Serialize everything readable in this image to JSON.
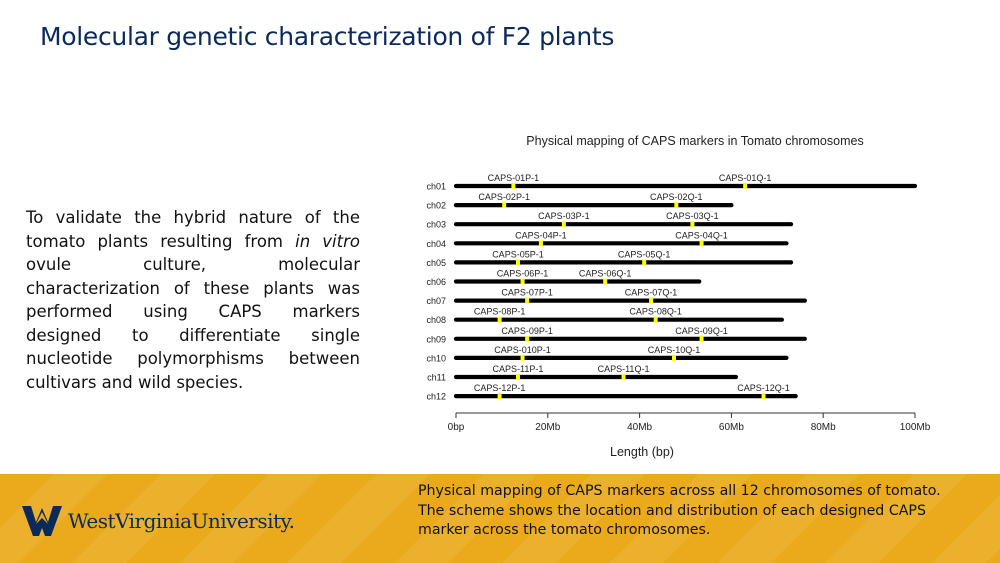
{
  "slide": {
    "title": "Molecular genetic characterization of F2 plants",
    "body_before": "To validate the hybrid nature of the tomato plants resulting from ",
    "body_italic": "in vitro",
    "body_after": " ovule culture, molecular characterization of these plants was performed using CAPS markers designed to differentiate single nucleotide polymorphisms between cultivars and wild species.",
    "caption": "Physical mapping of CAPS markers across all 12 chromosomes of tomato. The scheme shows the location and distribution of each designed CAPS marker across the tomato chromosomes.",
    "logo_text": "WestVirginiaUniversity."
  },
  "colors": {
    "title": "#0b2a5c",
    "footer": "#eaaa1c",
    "marker": "#ffff00",
    "chromosome": "#000000"
  },
  "chart_data": {
    "type": "scatter",
    "title": "Physical mapping of CAPS markers in Tomato chromosomes",
    "xlabel": "Length (bp)",
    "ylabel": "",
    "xlim": [
      0,
      100
    ],
    "x_unit": "Mb",
    "xticks": [
      0,
      20,
      40,
      60,
      80,
      100
    ],
    "xtick_labels": [
      "0bp",
      "20Mb",
      "40Mb",
      "60Mb",
      "80Mb",
      "100Mb"
    ],
    "chromosomes": [
      {
        "name": "ch01",
        "length": 100.0,
        "p_marker": {
          "label": "CAPS-01P-1",
          "pos": 12.5
        },
        "q_marker": {
          "label": "CAPS-01Q-1",
          "pos": 63.0
        }
      },
      {
        "name": "ch02",
        "length": 60.0,
        "p_marker": {
          "label": "CAPS-02P-1",
          "pos": 10.5
        },
        "q_marker": {
          "label": "CAPS-02Q-1",
          "pos": 48.0
        }
      },
      {
        "name": "ch03",
        "length": 73.0,
        "p_marker": {
          "label": "CAPS-03P-1",
          "pos": 23.5
        },
        "q_marker": {
          "label": "CAPS-03Q-1",
          "pos": 51.5
        }
      },
      {
        "name": "ch04",
        "length": 72.0,
        "p_marker": {
          "label": "CAPS-04P-1",
          "pos": 18.5
        },
        "q_marker": {
          "label": "CAPS-04Q-1",
          "pos": 53.5
        }
      },
      {
        "name": "ch05",
        "length": 73.0,
        "p_marker": {
          "label": "CAPS-05P-1",
          "pos": 13.5
        },
        "q_marker": {
          "label": "CAPS-05Q-1",
          "pos": 41.0
        }
      },
      {
        "name": "ch06",
        "length": 53.0,
        "p_marker": {
          "label": "CAPS-06P-1",
          "pos": 14.5
        },
        "q_marker": {
          "label": "CAPS-06Q-1",
          "pos": 32.5
        }
      },
      {
        "name": "ch07",
        "length": 76.0,
        "p_marker": {
          "label": "CAPS-07P-1",
          "pos": 15.5
        },
        "q_marker": {
          "label": "CAPS-07Q-1",
          "pos": 42.5
        }
      },
      {
        "name": "ch08",
        "length": 71.0,
        "p_marker": {
          "label": "CAPS-08P-1",
          "pos": 9.5
        },
        "q_marker": {
          "label": "CAPS-08Q-1",
          "pos": 43.5
        }
      },
      {
        "name": "ch09",
        "length": 76.0,
        "p_marker": {
          "label": "CAPS-09P-1",
          "pos": 15.5
        },
        "q_marker": {
          "label": "CAPS-09Q-1",
          "pos": 53.5
        }
      },
      {
        "name": "ch10",
        "length": 72.0,
        "p_marker": {
          "label": "CAPS-010P-1",
          "pos": 14.5
        },
        "q_marker": {
          "label": "CAPS-10Q-1",
          "pos": 47.5
        }
      },
      {
        "name": "ch11",
        "length": 61.0,
        "p_marker": {
          "label": "CAPS-11P-1",
          "pos": 13.5
        },
        "q_marker": {
          "label": "CAPS-11Q-1",
          "pos": 36.5
        }
      },
      {
        "name": "ch12",
        "length": 74.0,
        "p_marker": {
          "label": "CAPS-12P-1",
          "pos": 9.5
        },
        "q_marker": {
          "label": "CAPS-12Q-1",
          "pos": 67.0
        }
      }
    ]
  }
}
